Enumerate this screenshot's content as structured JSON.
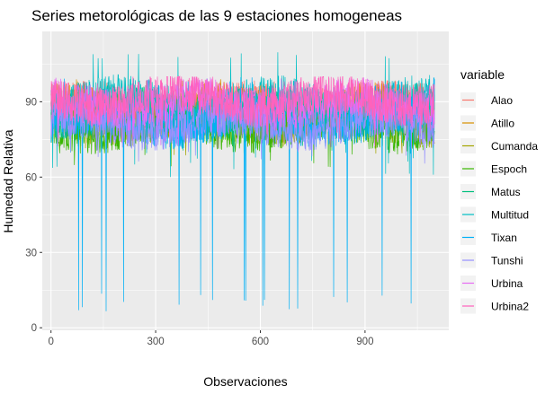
{
  "chart_data": {
    "type": "line",
    "title": "Series metorológicas de las 9 estaciones homogeneas",
    "xlabel": "Observaciones",
    "ylabel": "Humedad Relativa",
    "xlim": [
      -25,
      1140
    ],
    "ylim": [
      -1,
      118
    ],
    "x_ticks": [
      0,
      300,
      600,
      900
    ],
    "y_ticks": [
      0,
      30,
      60,
      90
    ],
    "grid": true,
    "legend_position": "right",
    "legend_title": "variable",
    "n_observations": 1100,
    "series": [
      {
        "name": "Alao",
        "color": "#F8766D",
        "mean": 88,
        "low": 75,
        "high": 99
      },
      {
        "name": "Atillo",
        "color": "#D89000",
        "mean": 87,
        "low": 74,
        "high": 99
      },
      {
        "name": "Cumanda",
        "color": "#A3A500",
        "mean": 82,
        "low": 68,
        "high": 96
      },
      {
        "name": "Espoch",
        "color": "#39B600",
        "mean": 80,
        "low": 62,
        "high": 95
      },
      {
        "name": "Matus",
        "color": "#00BF7D",
        "mean": 86,
        "low": 70,
        "high": 98
      },
      {
        "name": "Multitud",
        "color": "#00BFC4",
        "mean": 90,
        "low": 60,
        "high": 110
      },
      {
        "name": "Tixan",
        "color": "#00B0F6",
        "mean": 82,
        "low": 5,
        "high": 100
      },
      {
        "name": "Tunshi",
        "color": "#9590FF",
        "mean": 81,
        "low": 65,
        "high": 97
      },
      {
        "name": "Urbina",
        "color": "#E76BF3",
        "mean": 89,
        "low": 70,
        "high": 100
      },
      {
        "name": "Urbina2",
        "color": "#FF62BC",
        "mean": 91,
        "low": 75,
        "high": 100
      }
    ]
  }
}
